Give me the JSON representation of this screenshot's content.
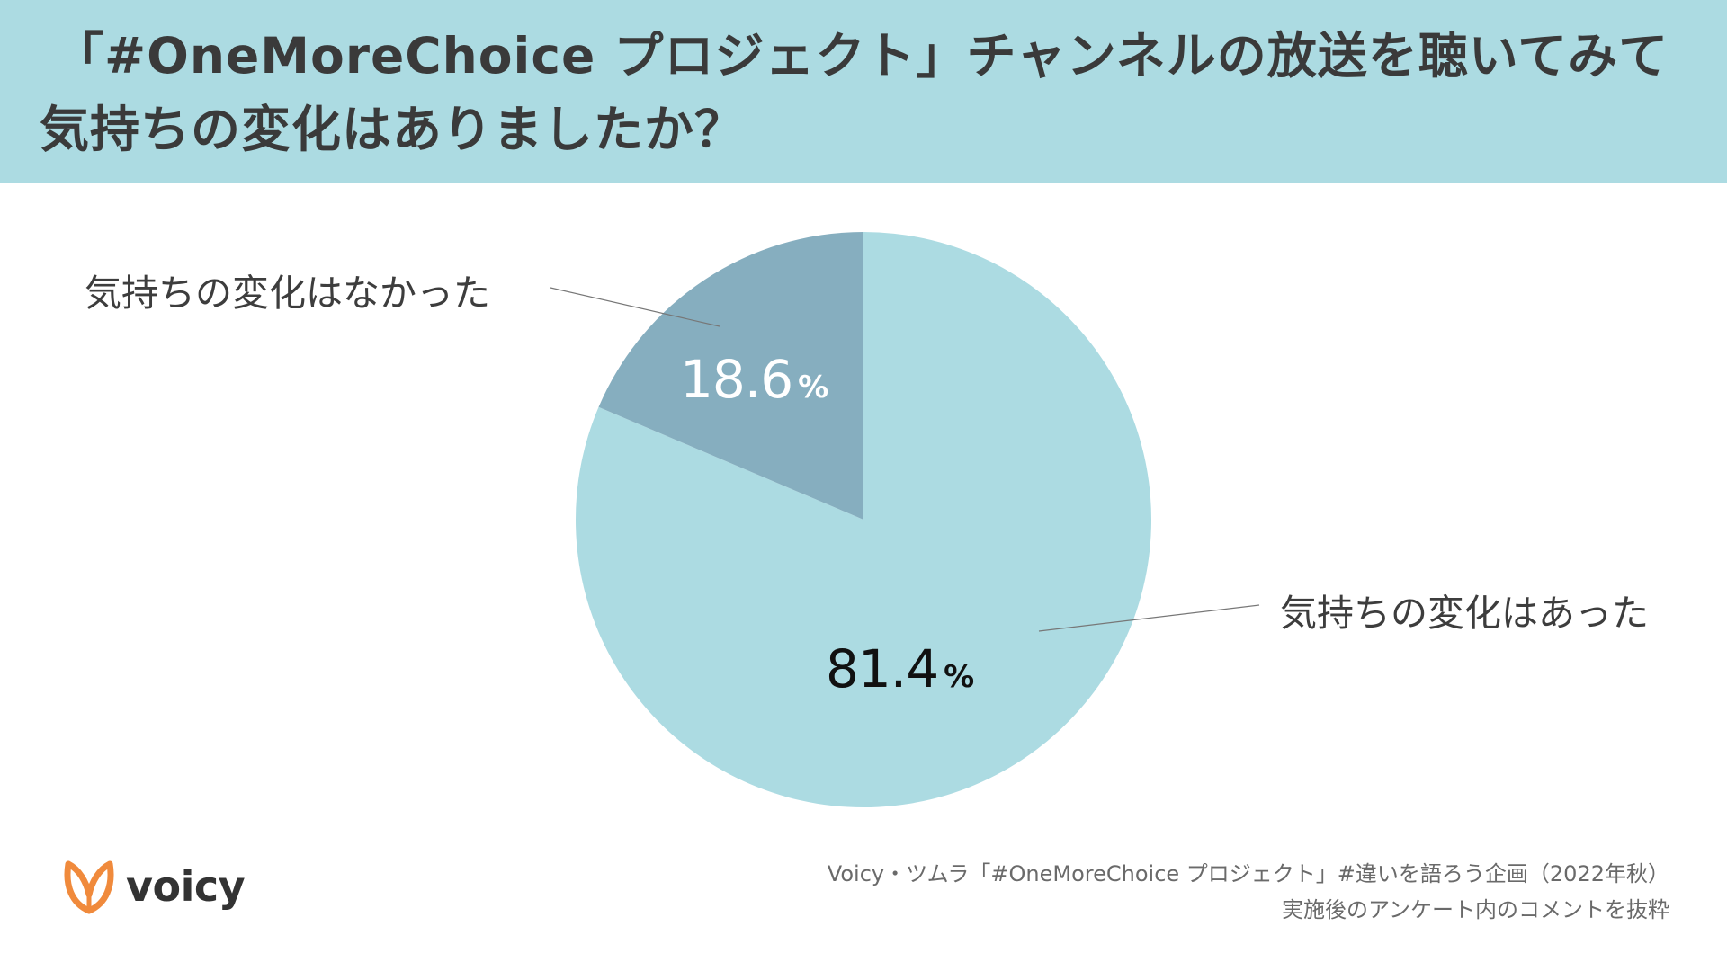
{
  "title": {
    "line1": "「#OneMoreChoice プロジェクト」チャンネルの放送を聴いてみて",
    "line2": "気持ちの変化はありましたか？"
  },
  "colors": {
    "header_bg": "#acdbe2",
    "slice_yes": "#acdbe2",
    "slice_no": "#86aebf",
    "logo_orange": "#f08a3c"
  },
  "chart_data": {
    "type": "pie",
    "title": "「#OneMoreChoice プロジェクト」チャンネルの放送を聴いてみて気持ちの変化はありましたか？",
    "slices": [
      {
        "label": "気持ちの変化はあった",
        "value": 81.4,
        "value_text": "81.4",
        "unit": "%",
        "color": "#acdbe2"
      },
      {
        "label": "気持ちの変化はなかった",
        "value": 18.6,
        "value_text": "18.6",
        "unit": "%",
        "color": "#86aebf"
      }
    ]
  },
  "logo": {
    "text": "voicy",
    "icon": "voicy-leaf-icon"
  },
  "source": {
    "line1": "Voicy・ツムラ「#OneMoreChoice プロジェクト」#違いを語ろう企画（2022年秋）",
    "line2": "実施後のアンケート内のコメントを抜粋"
  }
}
